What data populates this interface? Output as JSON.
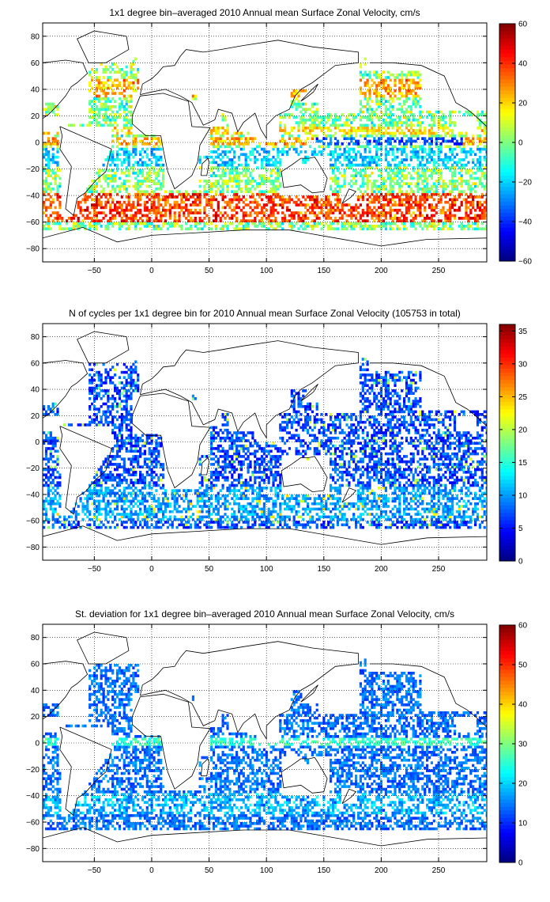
{
  "chart_data": [
    {
      "type": "heatmap",
      "title": "1x1 degree bin–averaged 2010 Annual mean Surface Zonal Velocity, cm/s",
      "xlabel": "",
      "ylabel": "",
      "xlim": [
        -95,
        292
      ],
      "ylim": [
        -90,
        90
      ],
      "x_ticks": [
        -50,
        0,
        50,
        100,
        150,
        200,
        250
      ],
      "y_ticks": [
        80,
        60,
        40,
        20,
        0,
        -20,
        -40,
        -60,
        -80
      ],
      "colorbar": {
        "min": -60,
        "max": 60,
        "ticks": [
          60,
          40,
          20,
          0,
          -20,
          -40,
          -60
        ],
        "colormap": "jet"
      },
      "grid": true,
      "values_description_unused": "",
      "field": "zonal_velocity"
    },
    {
      "type": "heatmap",
      "title": "N of cycles per 1x1 degree bin for 2010 Annual mean Surface Zonal Velocity (105753 in total)",
      "xlabel": "",
      "ylabel": "",
      "xlim": [
        -95,
        292
      ],
      "ylim": [
        -90,
        90
      ],
      "x_ticks": [
        -50,
        0,
        50,
        100,
        150,
        200,
        250
      ],
      "y_ticks": [
        80,
        60,
        40,
        20,
        0,
        -20,
        -40,
        -60,
        -80
      ],
      "colorbar": {
        "min": 0,
        "max": 36,
        "ticks": [
          35,
          30,
          25,
          20,
          15,
          10,
          5,
          0
        ],
        "colormap": "jet"
      },
      "grid": true,
      "field": "cycle_count"
    },
    {
      "type": "heatmap",
      "title": "St. deviation for 1x1 degree bin–averaged 2010 Annual mean Surface Zonal Velocity, cm/s",
      "xlabel": "",
      "ylabel": "",
      "xlim": [
        -95,
        292
      ],
      "ylim": [
        -90,
        90
      ],
      "x_ticks": [
        -50,
        0,
        50,
        100,
        150,
        200,
        250
      ],
      "y_ticks": [
        80,
        60,
        40,
        20,
        0,
        -20,
        -40,
        -60,
        -80
      ],
      "colorbar": {
        "min": 0,
        "max": 60,
        "ticks": [
          60,
          50,
          40,
          30,
          20,
          10,
          0
        ],
        "colormap": "jet"
      },
      "grid": true,
      "field": "std_dev"
    }
  ],
  "colors": {
    "axis": "#000000",
    "grid": "#000000",
    "land": "#ffffff"
  }
}
